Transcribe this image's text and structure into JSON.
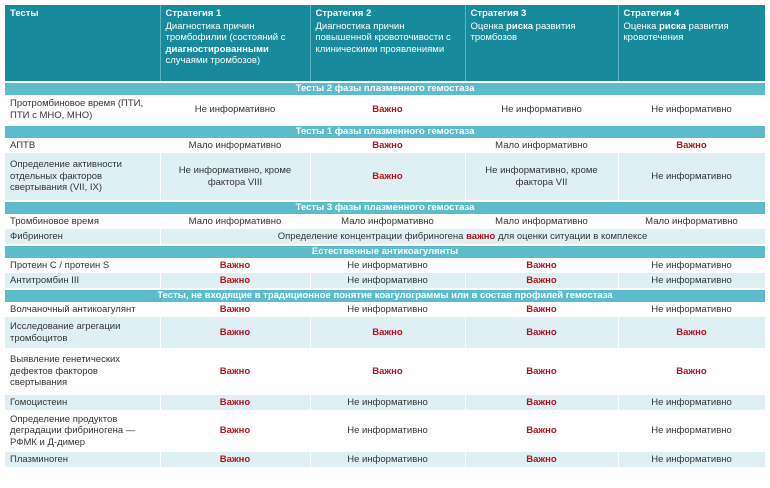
{
  "header": {
    "tests_label": "Тесты",
    "strategies": [
      {
        "name": "Стратегия 1",
        "desc": [
          {
            "text": "Диагностика причин тромбофилии (состояний с "
          },
          {
            "text": "диагностированными",
            "bold": true
          },
          {
            "text": " случаями тромбозов)"
          }
        ]
      },
      {
        "name": "Стратегия 2",
        "desc": [
          {
            "text": "Диагностика причин повышенной кровоточивости с клиническими проявлениями"
          }
        ]
      },
      {
        "name": "Стратегия 3",
        "desc": [
          {
            "text": "Оценка "
          },
          {
            "text": "риска",
            "bold": true
          },
          {
            "text": " развития тромбозов"
          }
        ]
      },
      {
        "name": "Стратегия 4",
        "desc": [
          {
            "text": "Оценка "
          },
          {
            "text": "риска",
            "bold": true
          },
          {
            "text": " развития кровотечения"
          }
        ]
      }
    ]
  },
  "important_label": "Важно",
  "colors": {
    "header": "#178a9b",
    "section": "#5cbccb",
    "row_alt": "#dff0f4",
    "important": "#b3141c"
  },
  "rows": [
    {
      "type": "section",
      "label": "Тесты 2 фазы плазменного гемостаза"
    },
    {
      "type": "test",
      "name": "Протромбиновое время (ПТИ, ПТИ с МНО, МНО)",
      "values": [
        "Не информативно",
        "Важно",
        "Не информативно",
        "Не информативно"
      ]
    },
    {
      "type": "section",
      "label": "Тесты 1 фазы плазменного гемостаза"
    },
    {
      "type": "test",
      "name": "АПТВ",
      "values": [
        "Мало информативно",
        "Важно",
        "Мало информативно",
        "Важно"
      ]
    },
    {
      "type": "test",
      "name": "Определение активности отдельных факторов свертывания (VII, IX)",
      "values": [
        "Не информативно, кроме фактора VIII",
        "Важно",
        "Не информативно, кроме фактора VII",
        "Не информативно"
      ],
      "light": true
    },
    {
      "type": "section",
      "label": "Тесты 3 фазы плазменного гемостаза"
    },
    {
      "type": "test",
      "name": "Тромбиновое время",
      "values": [
        "Мало информативно",
        "Мало информативно",
        "Мало информативно",
        "Мало информативно"
      ]
    },
    {
      "type": "test",
      "name": "Фибриноген",
      "span": [
        {
          "text": "Определение концентрации фибриногена "
        },
        {
          "text": "важно",
          "bold": true
        },
        {
          "text": " для оценки ситуации в комплексе"
        }
      ],
      "light": true
    },
    {
      "type": "section",
      "label": "Естественные антикоагулянты"
    },
    {
      "type": "test",
      "name": "Протеин C / протеин S",
      "values": [
        "Важно",
        "Не информативно",
        "Важно",
        "Не информативно"
      ]
    },
    {
      "type": "test",
      "name": "Антитромбин III",
      "values": [
        "Важно",
        "Не информативно",
        "Важно",
        "Не информативно"
      ],
      "light": true
    },
    {
      "type": "section",
      "label": "Тесты, не входящие в традиционное понятие коагулограммы или в состав профилей гемостаза"
    },
    {
      "type": "test",
      "name": "Волчаночный антикоагулянт",
      "values": [
        "Важно",
        "Не информативно",
        "Важно",
        "Не информативно"
      ]
    },
    {
      "type": "test",
      "name": "Исследование агрегации тромбоцитов",
      "values": [
        "Важно",
        "Важно",
        "Важно",
        "Важно"
      ],
      "light": true
    },
    {
      "type": "test",
      "name": "Выявление генетических дефектов факторов свертывания",
      "values": [
        "Важно",
        "Важно",
        "Важно",
        "Важно"
      ]
    },
    {
      "type": "test",
      "name": "Гомоцистеин",
      "values": [
        "Важно",
        "Не информативно",
        "Важно",
        "Не информативно"
      ],
      "light": true
    },
    {
      "type": "test",
      "name": "Определение продуктов деградации фибриногена — РФМК и Д-димер",
      "values": [
        "Важно",
        "Не информативно",
        "Важно",
        "Не информативно"
      ]
    },
    {
      "type": "test",
      "name": "Плазминоген",
      "values": [
        "Важно",
        "Не информативно",
        "Важно",
        "Не информативно"
      ],
      "light": true
    }
  ]
}
